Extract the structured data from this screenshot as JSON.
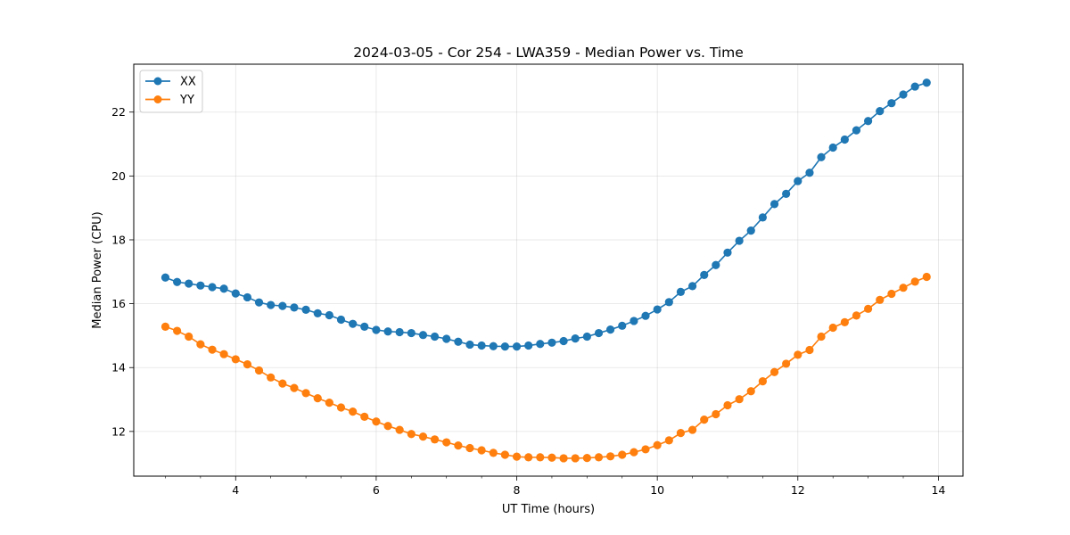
{
  "chart_data": {
    "type": "line",
    "title": "2024-03-05 - Cor 254 - LWA359 - Median Power vs. Time",
    "xlabel": "UT Time (hours)",
    "ylabel": "Median Power (CPU)",
    "xlim": [
      2.55,
      14.35
    ],
    "ylim": [
      10.6,
      23.5
    ],
    "xticks": [
      4,
      6,
      8,
      10,
      12,
      14
    ],
    "yticks": [
      12,
      14,
      16,
      18,
      20,
      22
    ],
    "xticklabels": [
      "4",
      "6",
      "8",
      "10",
      "12",
      "14"
    ],
    "yticklabels": [
      "12",
      "14",
      "16",
      "18",
      "20",
      "22"
    ],
    "grid": true,
    "legend_position": "top-left",
    "series": [
      {
        "name": "XX",
        "color": "#1f77b4",
        "x": [
          3.0,
          3.167,
          3.333,
          3.5,
          3.667,
          3.833,
          4.0,
          4.167,
          4.333,
          4.5,
          4.667,
          4.833,
          5.0,
          5.167,
          5.333,
          5.5,
          5.667,
          5.833,
          6.0,
          6.167,
          6.333,
          6.5,
          6.667,
          6.833,
          7.0,
          7.167,
          7.333,
          7.5,
          7.667,
          7.833,
          8.0,
          8.167,
          8.333,
          8.5,
          8.667,
          8.833,
          9.0,
          9.167,
          9.333,
          9.5,
          9.667,
          9.833,
          10.0,
          10.167,
          10.333,
          10.5,
          10.667,
          10.833,
          11.0,
          11.167,
          11.333,
          11.5,
          11.667,
          11.833,
          12.0,
          12.167,
          12.333,
          12.5,
          12.667,
          12.833,
          13.0,
          13.167,
          13.333,
          13.5,
          13.667,
          13.833
        ],
        "values": [
          16.82,
          16.68,
          16.63,
          16.57,
          16.52,
          16.47,
          16.32,
          16.2,
          16.04,
          15.96,
          15.93,
          15.88,
          15.81,
          15.7,
          15.64,
          15.5,
          15.37,
          15.28,
          15.18,
          15.13,
          15.11,
          15.08,
          15.02,
          14.97,
          14.9,
          14.81,
          14.72,
          14.69,
          14.67,
          14.66,
          14.66,
          14.69,
          14.74,
          14.78,
          14.83,
          14.91,
          14.97,
          15.08,
          15.19,
          15.31,
          15.46,
          15.62,
          15.82,
          16.05,
          16.37,
          16.55,
          16.9,
          17.21,
          17.6,
          17.97,
          18.29,
          18.7,
          19.12,
          19.44,
          19.84,
          20.1,
          20.59,
          20.89,
          21.14,
          21.43,
          21.72,
          22.03,
          22.28,
          22.55,
          22.8,
          22.92
        ]
      },
      {
        "name": "YY",
        "color": "#ff7f0e",
        "x": [
          3.0,
          3.167,
          3.333,
          3.5,
          3.667,
          3.833,
          4.0,
          4.167,
          4.333,
          4.5,
          4.667,
          4.833,
          5.0,
          5.167,
          5.333,
          5.5,
          5.667,
          5.833,
          6.0,
          6.167,
          6.333,
          6.5,
          6.667,
          6.833,
          7.0,
          7.167,
          7.333,
          7.5,
          7.667,
          7.833,
          8.0,
          8.167,
          8.333,
          8.5,
          8.667,
          8.833,
          9.0,
          9.167,
          9.333,
          9.5,
          9.667,
          9.833,
          10.0,
          10.167,
          10.333,
          10.5,
          10.667,
          10.833,
          11.0,
          11.167,
          11.333,
          11.5,
          11.667,
          11.833,
          12.0,
          12.167,
          12.333,
          12.5,
          12.667,
          12.833,
          13.0,
          13.167,
          13.333,
          13.5,
          13.667,
          13.833
        ],
        "values": [
          15.28,
          15.15,
          14.97,
          14.73,
          14.56,
          14.42,
          14.26,
          14.1,
          13.91,
          13.69,
          13.5,
          13.36,
          13.2,
          13.04,
          12.9,
          12.75,
          12.62,
          12.46,
          12.31,
          12.17,
          12.05,
          11.92,
          11.84,
          11.75,
          11.66,
          11.56,
          11.48,
          11.41,
          11.33,
          11.27,
          11.21,
          11.19,
          11.19,
          11.18,
          11.16,
          11.16,
          11.17,
          11.19,
          11.22,
          11.27,
          11.35,
          11.44,
          11.57,
          11.72,
          11.95,
          12.05,
          12.37,
          12.54,
          12.82,
          13.01,
          13.26,
          13.57,
          13.86,
          14.12,
          14.4,
          14.55,
          14.97,
          15.25,
          15.42,
          15.63,
          15.84,
          16.12,
          16.31,
          16.5,
          16.69,
          16.84
        ]
      }
    ]
  }
}
